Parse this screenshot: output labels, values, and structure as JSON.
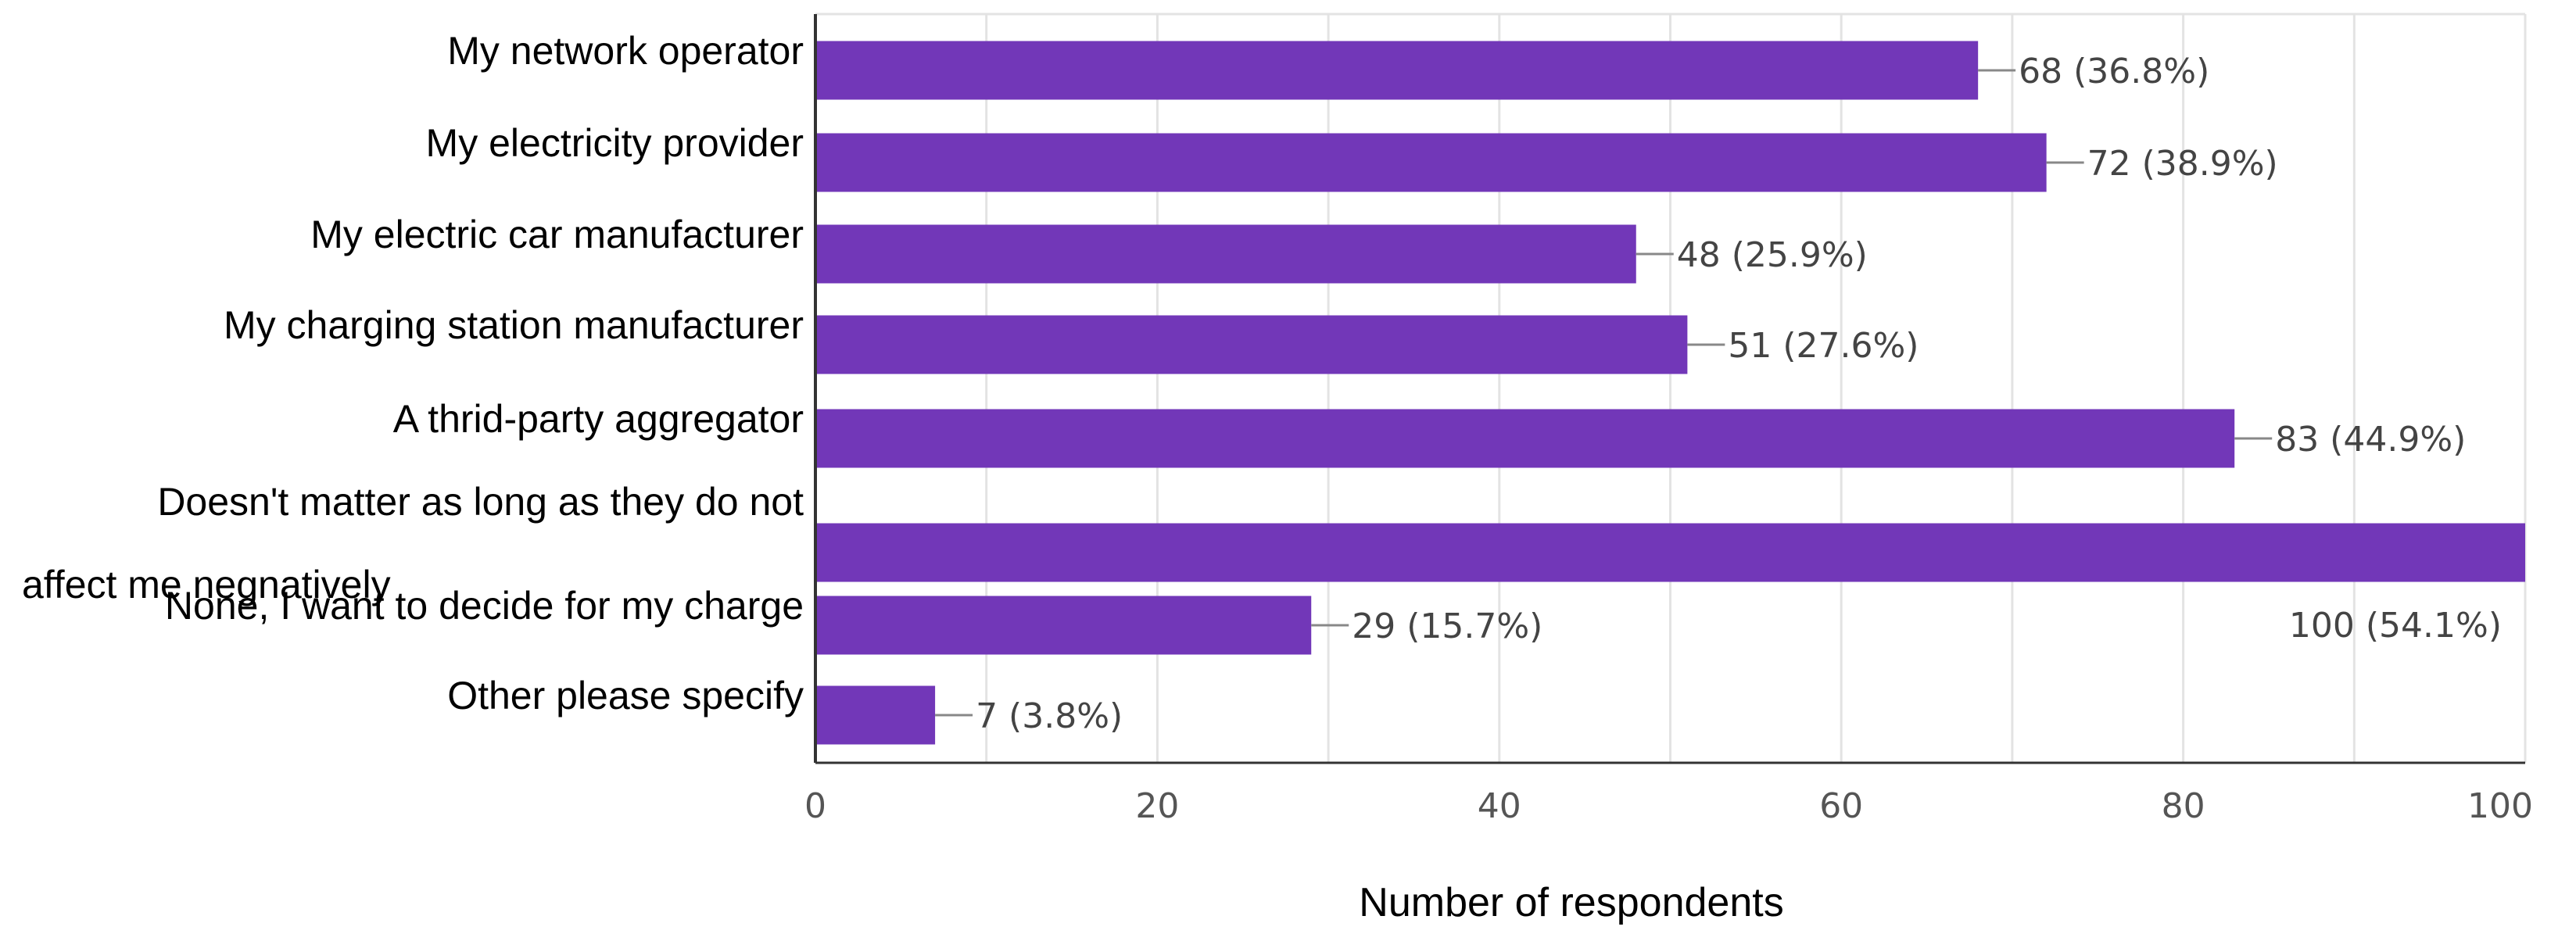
{
  "chart_data": {
    "type": "bar",
    "orientation": "horizontal",
    "categories": [
      "My network operator",
      "My electricity provider",
      "My electric car manufacturer",
      "My charging station manufacturer",
      "A thrid-party aggregator",
      [
        "Doesn't matter as long as they do not",
        "affect me negnatively"
      ],
      "None, I want to decide for my charge",
      "Other please specify"
    ],
    "values": [
      68,
      72,
      48,
      51,
      83,
      100,
      29,
      7
    ],
    "data_labels": [
      "68 (36.8%)",
      "72 (38.9%)",
      "48 (25.9%)",
      "51 (27.6%)",
      "83 (44.9%)",
      "100 (54.1%)",
      "29 (15.7%)",
      "7 (3.8%)"
    ],
    "title": "",
    "xlabel": "Number of respondents",
    "ylabel": "",
    "xlim": [
      0,
      100
    ],
    "xticks": [
      0,
      20,
      40,
      60,
      80,
      100
    ],
    "grid": true,
    "bar_color": "#7237b8"
  }
}
